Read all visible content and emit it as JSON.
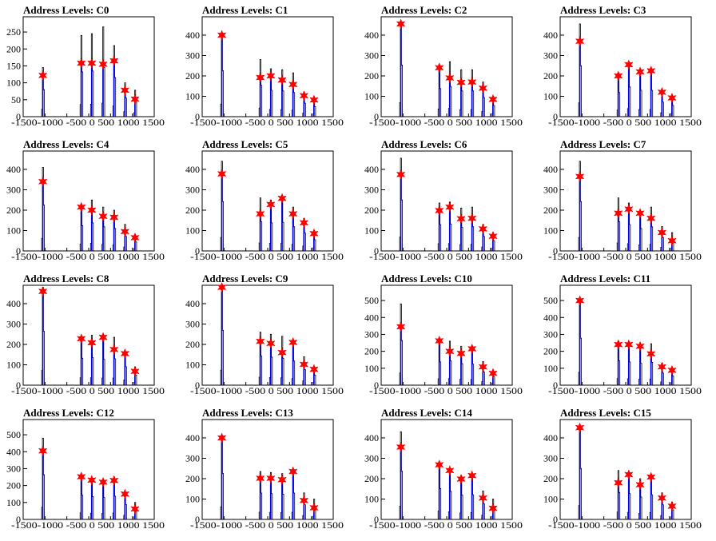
{
  "chart_data": [
    {
      "type": "bar",
      "title": "Address Levels: C0",
      "xlim": [
        -1500,
        1500
      ],
      "yticks": [
        0,
        50,
        100,
        150,
        200,
        250
      ],
      "peaks_x": [
        -1050,
        -170,
        70,
        330,
        580,
        830,
        1060
      ],
      "peak_heights": [
        145,
        240,
        245,
        265,
        210,
        100,
        78
      ],
      "fit_values": [
        122,
        158,
        158,
        155,
        165,
        78,
        52
      ]
    },
    {
      "type": "bar",
      "title": "Address Levels: C1",
      "xlim": [
        -1500,
        1500
      ],
      "yticks": [
        0,
        100,
        200,
        300,
        400
      ],
      "peaks_x": [
        -1050,
        -170,
        70,
        330,
        580,
        830,
        1060
      ],
      "peak_heights": [
        410,
        280,
        235,
        230,
        215,
        120,
        90
      ],
      "fit_values": [
        400,
        192,
        200,
        180,
        158,
        103,
        82
      ]
    },
    {
      "type": "bar",
      "title": "Address Levels: C2",
      "xlim": [
        -1500,
        1500
      ],
      "yticks": [
        0,
        100,
        200,
        300,
        400
      ],
      "peaks_x": [
        -1050,
        -170,
        70,
        330,
        580,
        830,
        1060
      ],
      "peak_heights": [
        460,
        250,
        270,
        230,
        230,
        170,
        100
      ],
      "fit_values": [
        455,
        240,
        190,
        168,
        170,
        140,
        85
      ]
    },
    {
      "type": "bar",
      "title": "Address Levels: C3",
      "xlim": [
        -1500,
        1500
      ],
      "yticks": [
        0,
        100,
        200,
        300,
        400
      ],
      "peaks_x": [
        -1050,
        -170,
        70,
        330,
        580,
        830,
        1060
      ],
      "peak_heights": [
        455,
        215,
        265,
        235,
        235,
        130,
        100
      ],
      "fit_values": [
        370,
        200,
        255,
        220,
        225,
        120,
        92
      ]
    },
    {
      "type": "bar",
      "title": "Address Levels: C4",
      "xlim": [
        -1500,
        1500
      ],
      "yticks": [
        0,
        100,
        200,
        300,
        400
      ],
      "peaks_x": [
        -1050,
        -170,
        70,
        330,
        580,
        830,
        1060
      ],
      "peak_heights": [
        410,
        225,
        250,
        215,
        200,
        130,
        80
      ],
      "fit_values": [
        340,
        215,
        200,
        170,
        165,
        95,
        65
      ]
    },
    {
      "type": "bar",
      "title": "Address Levels: C5",
      "xlim": [
        -1500,
        1500
      ],
      "yticks": [
        0,
        100,
        200,
        300,
        400
      ],
      "peaks_x": [
        -1050,
        -170,
        70,
        330,
        580,
        830,
        1060
      ],
      "peak_heights": [
        440,
        260,
        250,
        255,
        215,
        160,
        100
      ],
      "fit_values": [
        378,
        182,
        228,
        258,
        182,
        138,
        85
      ]
    },
    {
      "type": "bar",
      "title": "Address Levels: C6",
      "xlim": [
        -1500,
        1500
      ],
      "yticks": [
        0,
        100,
        200,
        300,
        400
      ],
      "peaks_x": [
        -1050,
        -170,
        70,
        330,
        580,
        830,
        1060
      ],
      "peak_heights": [
        455,
        235,
        240,
        210,
        215,
        130,
        90
      ],
      "fit_values": [
        375,
        198,
        215,
        158,
        160,
        108,
        72
      ]
    },
    {
      "type": "bar",
      "title": "Address Levels: C7",
      "xlim": [
        -1500,
        1500
      ],
      "yticks": [
        0,
        100,
        200,
        300,
        400
      ],
      "peaks_x": [
        -1050,
        -170,
        70,
        330,
        580,
        830,
        1060
      ],
      "peak_heights": [
        440,
        260,
        235,
        200,
        215,
        120,
        90
      ],
      "fit_values": [
        365,
        185,
        205,
        185,
        160,
        90,
        50
      ]
    },
    {
      "type": "bar",
      "title": "Address Levels: C8",
      "xlim": [
        -1500,
        1500
      ],
      "yticks": [
        0,
        100,
        200,
        300,
        400
      ],
      "peaks_x": [
        -1050,
        -170,
        70,
        330,
        580,
        830,
        1060
      ],
      "peak_heights": [
        480,
        240,
        245,
        230,
        235,
        165,
        90
      ],
      "fit_values": [
        460,
        228,
        208,
        235,
        175,
        155,
        68
      ]
    },
    {
      "type": "bar",
      "title": "Address Levels: C9",
      "xlim": [
        -1500,
        1500
      ],
      "yticks": [
        0,
        100,
        200,
        300,
        400
      ],
      "peaks_x": [
        -1050,
        -170,
        70,
        330,
        580,
        830,
        1060
      ],
      "peak_heights": [
        490,
        260,
        250,
        240,
        215,
        140,
        90
      ],
      "fit_values": [
        480,
        215,
        205,
        160,
        210,
        102,
        78
      ]
    },
    {
      "type": "bar",
      "title": "Address Levels: C10",
      "xlim": [
        -1500,
        1500
      ],
      "yticks": [
        0,
        100,
        200,
        300,
        400,
        500
      ],
      "peaks_x": [
        -1050,
        -170,
        70,
        330,
        580,
        830,
        1060
      ],
      "peak_heights": [
        480,
        250,
        260,
        230,
        225,
        140,
        90
      ],
      "fit_values": [
        345,
        262,
        200,
        188,
        215,
        108,
        70
      ]
    },
    {
      "type": "bar",
      "title": "Address Levels: C11",
      "xlim": [
        -1500,
        1500
      ],
      "yticks": [
        0,
        100,
        200,
        300,
        400,
        500
      ],
      "peaks_x": [
        -1050,
        -170,
        70,
        330,
        580,
        830,
        1060
      ],
      "peak_heights": [
        505,
        260,
        250,
        235,
        245,
        130,
        100
      ],
      "fit_values": [
        500,
        240,
        240,
        230,
        185,
        108,
        88
      ]
    },
    {
      "type": "bar",
      "title": "Address Levels: C12",
      "xlim": [
        -1500,
        1500
      ],
      "yticks": [
        0,
        100,
        200,
        300,
        400,
        500
      ],
      "peaks_x": [
        -1050,
        -170,
        70,
        330,
        580,
        830,
        1060
      ],
      "peak_heights": [
        480,
        260,
        245,
        235,
        250,
        160,
        100
      ],
      "fit_values": [
        405,
        252,
        232,
        220,
        230,
        150,
        62
      ]
    },
    {
      "type": "bar",
      "title": "Address Levels: C13",
      "xlim": [
        -1500,
        1500
      ],
      "yticks": [
        0,
        100,
        200,
        300,
        400
      ],
      "peaks_x": [
        -1050,
        -170,
        70,
        330,
        580,
        830,
        1060
      ],
      "peak_heights": [
        410,
        235,
        230,
        225,
        235,
        130,
        100
      ],
      "fit_values": [
        400,
        202,
        202,
        195,
        235,
        93,
        57
      ]
    },
    {
      "type": "bar",
      "title": "Address Levels: C14",
      "xlim": [
        -1500,
        1500
      ],
      "yticks": [
        0,
        100,
        200,
        300,
        400
      ],
      "peaks_x": [
        -1050,
        -170,
        70,
        330,
        580,
        830,
        1060
      ],
      "peak_heights": [
        430,
        275,
        250,
        215,
        220,
        140,
        100
      ],
      "fit_values": [
        355,
        268,
        240,
        198,
        215,
        105,
        55
      ]
    },
    {
      "type": "bar",
      "title": "Address Levels: C15",
      "xlim": [
        -1500,
        1500
      ],
      "yticks": [
        0,
        100,
        200,
        300,
        400
      ],
      "peaks_x": [
        -1050,
        -170,
        70,
        330,
        580,
        830,
        1060
      ],
      "peak_heights": [
        455,
        240,
        230,
        200,
        220,
        130,
        85
      ],
      "fit_values": [
        450,
        180,
        220,
        170,
        208,
        105,
        65
      ]
    }
  ]
}
